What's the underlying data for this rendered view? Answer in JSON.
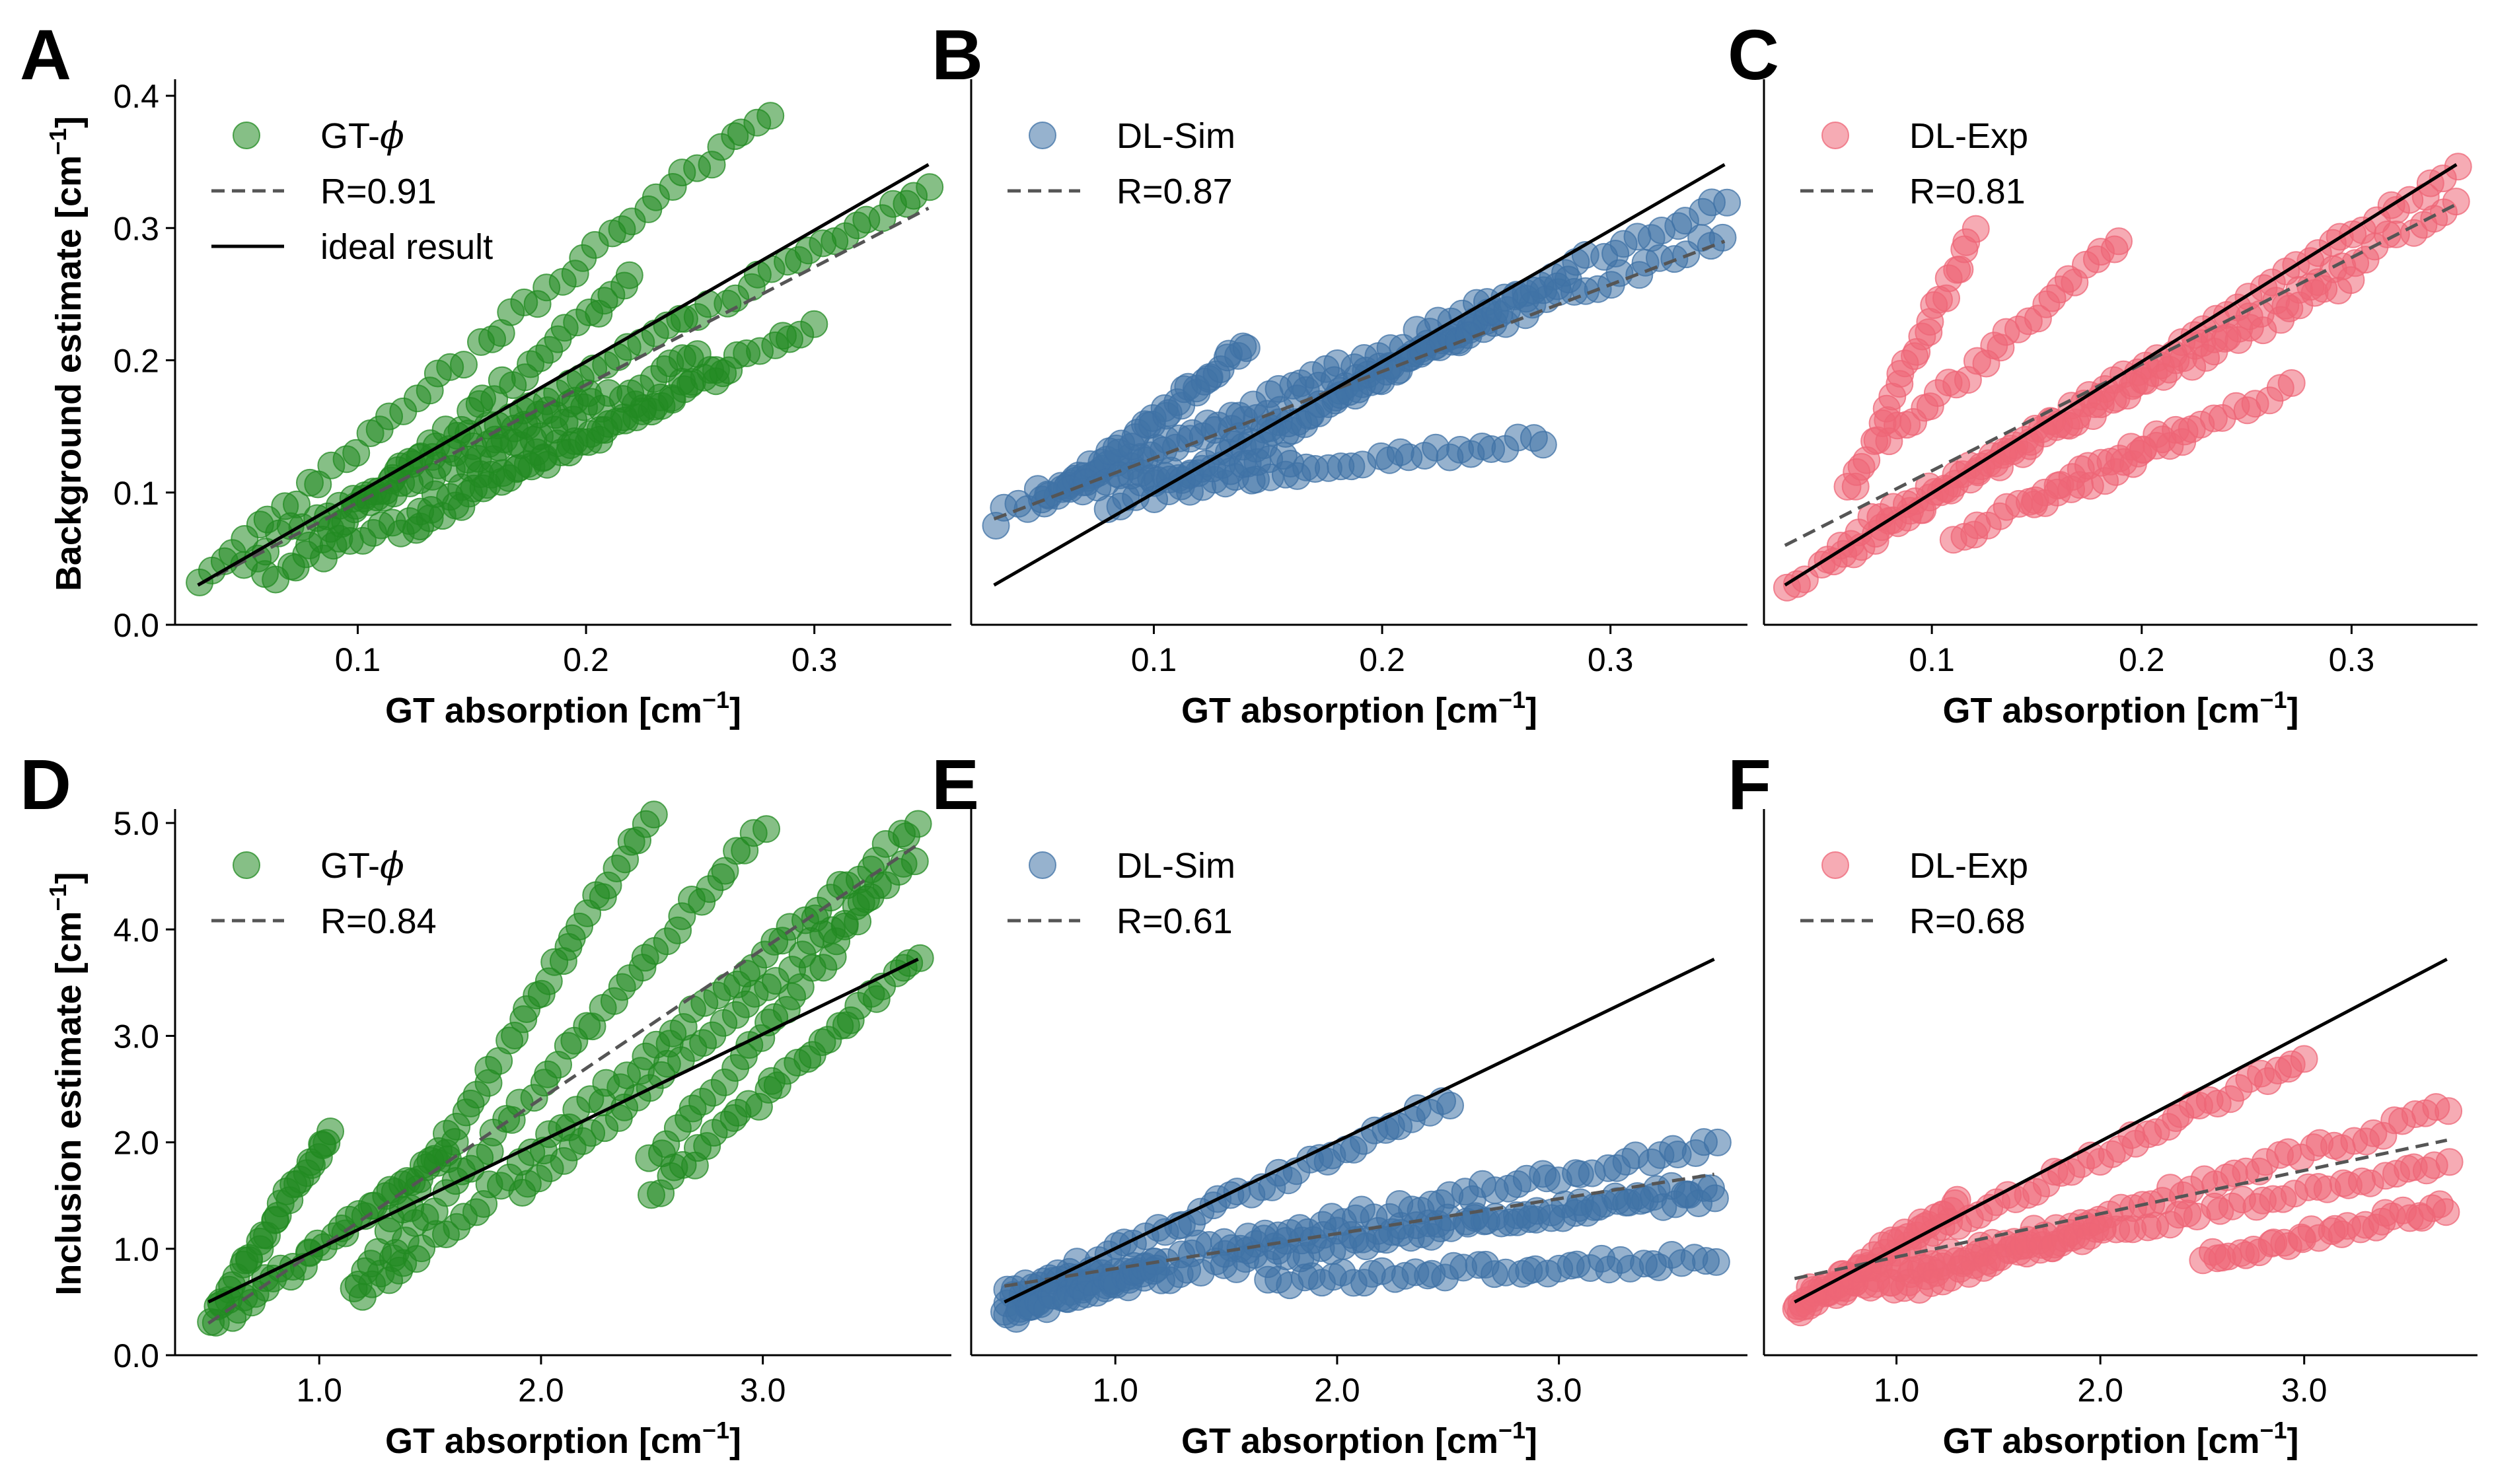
{
  "figure": {
    "colors": {
      "green": "#228b22",
      "blue": "#3f72a6",
      "pink": "#ee6677",
      "dashed": "#555555",
      "ideal": "#000000"
    }
  },
  "chart_data": [
    {
      "panel": "A",
      "type": "scatter",
      "xlabel": "GT absorption [cm",
      "xlabel_sup": "−1",
      "xlabel_end": "]",
      "ylabel": "Background estimate [cm",
      "ylabel_sup": "−1",
      "ylabel_end": "]",
      "xlim": [
        0.02,
        0.36
      ],
      "ylim": [
        0.0,
        0.41
      ],
      "xticks": [
        0.1,
        0.2,
        0.3
      ],
      "xtick_labels": [
        "0.1",
        "0.2",
        "0.3"
      ],
      "yticks": [
        0.0,
        0.1,
        0.2,
        0.3,
        0.4
      ],
      "ytick_labels": [
        "0.0",
        "0.1",
        "0.2",
        "0.3",
        "0.4"
      ],
      "series_name": "GT-",
      "series_symbol": "ϕ",
      "color": "green",
      "r_label": "R=0.91",
      "ideal_label": "ideal result",
      "fit": {
        "x": [
          0.03,
          0.35
        ],
        "y": [
          0.03,
          0.315
        ]
      },
      "ideal": {
        "x": [
          0.03,
          0.35
        ],
        "y": [
          0.03,
          0.348
        ]
      },
      "clusters": [
        {
          "x0": 0.03,
          "x1": 0.28,
          "y0": 0.035,
          "y1": 0.39,
          "n": 48
        },
        {
          "x0": 0.05,
          "x1": 0.35,
          "y0": 0.05,
          "y1": 0.33,
          "n": 58
        },
        {
          "x0": 0.06,
          "x1": 0.3,
          "y0": 0.035,
          "y1": 0.225,
          "n": 52
        },
        {
          "x0": 0.08,
          "x1": 0.22,
          "y0": 0.06,
          "y1": 0.26,
          "n": 36
        },
        {
          "x0": 0.12,
          "x1": 0.26,
          "y0": 0.07,
          "y1": 0.19,
          "n": 34
        },
        {
          "x0": 0.1,
          "x1": 0.2,
          "y0": 0.09,
          "y1": 0.17,
          "n": 26
        },
        {
          "x0": 0.15,
          "x1": 0.25,
          "y0": 0.12,
          "y1": 0.205,
          "n": 24
        }
      ]
    },
    {
      "panel": "B",
      "type": "scatter",
      "xlabel": "GT absorption [cm",
      "xlabel_sup": "−1",
      "xlabel_end": "]",
      "xlim": [
        0.02,
        0.36
      ],
      "ylim": [
        0.0,
        0.41
      ],
      "xticks": [
        0.1,
        0.2,
        0.3
      ],
      "xtick_labels": [
        "0.1",
        "0.2",
        "0.3"
      ],
      "series_name": "DL-Sim",
      "color": "blue",
      "r_label": "R=0.87",
      "fit": {
        "x": [
          0.03,
          0.35
        ],
        "y": [
          0.08,
          0.29
        ]
      },
      "ideal": {
        "x": [
          0.03,
          0.35
        ],
        "y": [
          0.03,
          0.348
        ]
      },
      "clusters": [
        {
          "x0": 0.03,
          "x1": 0.35,
          "y0": 0.08,
          "y1": 0.32,
          "n": 60
        },
        {
          "x0": 0.05,
          "x1": 0.35,
          "y0": 0.095,
          "y1": 0.295,
          "n": 55
        },
        {
          "x0": 0.06,
          "x1": 0.14,
          "y0": 0.1,
          "y1": 0.21,
          "n": 40
        },
        {
          "x0": 0.08,
          "x1": 0.25,
          "y0": 0.09,
          "y1": 0.23,
          "n": 44
        },
        {
          "x0": 0.1,
          "x1": 0.27,
          "y0": 0.1,
          "y1": 0.14,
          "n": 34
        },
        {
          "x0": 0.14,
          "x1": 0.28,
          "y0": 0.13,
          "y1": 0.265,
          "n": 34
        },
        {
          "x0": 0.05,
          "x1": 0.16,
          "y0": 0.1,
          "y1": 0.125,
          "n": 26
        }
      ]
    },
    {
      "panel": "C",
      "type": "scatter",
      "xlabel": "GT absorption [cm",
      "xlabel_sup": "−1",
      "xlabel_end": "]",
      "xlim": [
        0.02,
        0.36
      ],
      "ylim": [
        0.0,
        0.41
      ],
      "xticks": [
        0.1,
        0.2,
        0.3
      ],
      "xtick_labels": [
        "0.1",
        "0.2",
        "0.3"
      ],
      "series_name": "DL-Exp",
      "color": "pink",
      "r_label": "R=0.81",
      "fit": {
        "x": [
          0.03,
          0.35
        ],
        "y": [
          0.06,
          0.318
        ]
      },
      "ideal": {
        "x": [
          0.03,
          0.35
        ],
        "y": [
          0.03,
          0.348
        ]
      },
      "clusters": [
        {
          "x0": 0.03,
          "x1": 0.35,
          "y0": 0.025,
          "y1": 0.345,
          "n": 60
        },
        {
          "x0": 0.05,
          "x1": 0.35,
          "y0": 0.05,
          "y1": 0.32,
          "n": 56
        },
        {
          "x0": 0.06,
          "x1": 0.12,
          "y0": 0.1,
          "y1": 0.295,
          "n": 28
        },
        {
          "x0": 0.08,
          "x1": 0.19,
          "y0": 0.14,
          "y1": 0.29,
          "n": 28
        },
        {
          "x0": 0.11,
          "x1": 0.22,
          "y0": 0.065,
          "y1": 0.15,
          "n": 26
        },
        {
          "x0": 0.15,
          "x1": 0.27,
          "y0": 0.09,
          "y1": 0.18,
          "n": 24
        },
        {
          "x0": 0.07,
          "x1": 0.3,
          "y0": 0.08,
          "y1": 0.26,
          "n": 40
        }
      ]
    },
    {
      "panel": "D",
      "type": "scatter",
      "xlabel": "GT absorption [cm",
      "xlabel_sup": "−1",
      "xlabel_end": "]",
      "ylabel": "Inclusion estimate [cm",
      "ylabel_sup": "−1",
      "ylabel_end": "]",
      "xlim": [
        0.35,
        3.85
      ],
      "ylim": [
        0.0,
        5.1
      ],
      "xticks": [
        1.0,
        2.0,
        3.0
      ],
      "xtick_labels": [
        "1.0",
        "2.0",
        "3.0"
      ],
      "yticks": [
        0.0,
        1.0,
        2.0,
        3.0,
        4.0,
        5.0
      ],
      "ytick_labels": [
        "0.0",
        "1.0",
        "2.0",
        "3.0",
        "4.0",
        "5.0"
      ],
      "series_name": "GT-",
      "series_symbol": "ϕ",
      "color": "green",
      "r_label": "R=0.84",
      "fit": {
        "x": [
          0.5,
          3.7
        ],
        "y": [
          0.3,
          4.8
        ]
      },
      "ideal": {
        "x": [
          0.5,
          3.7
        ],
        "y": [
          0.5,
          3.72
        ]
      },
      "clusters": [
        {
          "x0": 0.5,
          "x1": 1.05,
          "y0": 0.3,
          "y1": 2.1,
          "n": 34
        },
        {
          "x0": 0.6,
          "x1": 1.6,
          "y0": 0.4,
          "y1": 1.95,
          "n": 36
        },
        {
          "x0": 1.15,
          "x1": 2.5,
          "y0": 0.6,
          "y1": 5.1,
          "n": 44
        },
        {
          "x0": 1.2,
          "x1": 3.0,
          "y0": 0.6,
          "y1": 5.0,
          "n": 46
        },
        {
          "x0": 1.3,
          "x1": 3.7,
          "y0": 0.7,
          "y1": 5.0,
          "n": 56
        },
        {
          "x0": 2.5,
          "x1": 3.7,
          "y0": 1.5,
          "y1": 3.75,
          "n": 34
        },
        {
          "x0": 1.9,
          "x1": 3.7,
          "y0": 1.5,
          "y1": 4.7,
          "n": 38
        },
        {
          "x0": 2.5,
          "x1": 3.5,
          "y0": 1.8,
          "y1": 4.3,
          "n": 26
        }
      ]
    },
    {
      "panel": "E",
      "type": "scatter",
      "xlabel": "GT absorption [cm",
      "xlabel_sup": "−1",
      "xlabel_end": "]",
      "xlim": [
        0.35,
        3.85
      ],
      "ylim": [
        0.0,
        5.1
      ],
      "xticks": [
        1.0,
        2.0,
        3.0
      ],
      "xtick_labels": [
        "1.0",
        "2.0",
        "3.0"
      ],
      "series_name": "DL-Sim",
      "color": "blue",
      "r_label": "R=0.61",
      "fit": {
        "x": [
          0.5,
          3.7
        ],
        "y": [
          0.65,
          1.7
        ]
      },
      "ideal": {
        "x": [
          0.5,
          3.7
        ],
        "y": [
          0.5,
          3.72
        ]
      },
      "clusters": [
        {
          "x0": 0.5,
          "x1": 2.5,
          "y0": 0.5,
          "y1": 2.38,
          "n": 48
        },
        {
          "x0": 0.5,
          "x1": 3.7,
          "y0": 0.6,
          "y1": 2.0,
          "n": 66
        },
        {
          "x0": 0.6,
          "x1": 3.7,
          "y0": 0.55,
          "y1": 1.6,
          "n": 64
        },
        {
          "x0": 1.7,
          "x1": 3.7,
          "y0": 0.7,
          "y1": 0.9,
          "n": 44
        },
        {
          "x0": 0.5,
          "x1": 1.2,
          "y0": 0.35,
          "y1": 0.85,
          "n": 36
        },
        {
          "x0": 1.5,
          "x1": 3.7,
          "y0": 1.0,
          "y1": 1.5,
          "n": 40
        }
      ]
    },
    {
      "panel": "F",
      "type": "scatter",
      "xlabel": "GT absorption [cm",
      "xlabel_sup": "−1",
      "xlabel_end": "]",
      "xlim": [
        0.35,
        3.85
      ],
      "ylim": [
        0.0,
        5.1
      ],
      "xticks": [
        1.0,
        2.0,
        3.0
      ],
      "xtick_labels": [
        "1.0",
        "2.0",
        "3.0"
      ],
      "series_name": "DL-Exp",
      "color": "pink",
      "r_label": "R=0.68",
      "fit": {
        "x": [
          0.5,
          3.7
        ],
        "y": [
          0.72,
          2.02
        ]
      },
      "ideal": {
        "x": [
          0.5,
          3.7
        ],
        "y": [
          0.5,
          3.72
        ]
      },
      "clusters": [
        {
          "x0": 0.5,
          "x1": 3.0,
          "y0": 0.5,
          "y1": 2.8,
          "n": 56
        },
        {
          "x0": 0.55,
          "x1": 3.7,
          "y0": 0.5,
          "y1": 2.3,
          "n": 62
        },
        {
          "x0": 0.6,
          "x1": 3.7,
          "y0": 0.6,
          "y1": 1.8,
          "n": 60
        },
        {
          "x0": 2.5,
          "x1": 3.7,
          "y0": 0.9,
          "y1": 1.4,
          "n": 34
        },
        {
          "x0": 0.5,
          "x1": 1.3,
          "y0": 0.4,
          "y1": 1.45,
          "n": 38
        },
        {
          "x0": 1.0,
          "x1": 2.0,
          "y0": 0.6,
          "y1": 1.2,
          "n": 30
        }
      ]
    }
  ]
}
